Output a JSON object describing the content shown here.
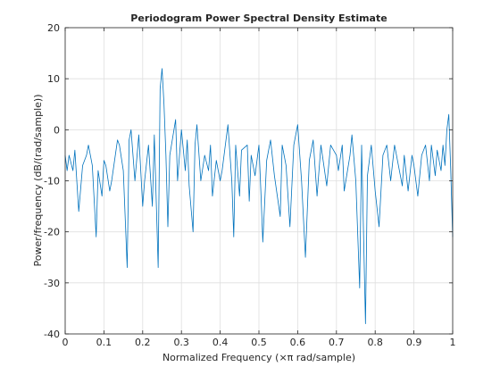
{
  "chart_data": {
    "type": "line",
    "title": "Periodogram Power Spectral Density Estimate",
    "xlabel": "Normalized Frequency  (×π rad/sample)",
    "ylabel": "Power/frequency (dB/(rad/sample))",
    "color": "#0072bd",
    "grid": true,
    "xlim": [
      0,
      1
    ],
    "xticks": [
      0,
      0.1,
      0.2,
      0.3,
      0.4,
      0.5,
      0.6,
      0.7,
      0.8,
      0.9,
      1
    ],
    "ylim": [
      -40,
      20
    ],
    "yticks": [
      -40,
      -30,
      -20,
      -10,
      0,
      10,
      20
    ],
    "x": [
      0,
      0.005,
      0.01,
      0.02,
      0.025,
      0.035,
      0.045,
      0.055,
      0.06,
      0.07,
      0.08,
      0.085,
      0.095,
      0.1,
      0.105,
      0.115,
      0.12,
      0.135,
      0.14,
      0.15,
      0.16,
      0.165,
      0.17,
      0.18,
      0.19,
      0.2,
      0.205,
      0.215,
      0.225,
      0.23,
      0.24,
      0.245,
      0.25,
      0.255,
      0.26,
      0.265,
      0.27,
      0.285,
      0.29,
      0.3,
      0.31,
      0.315,
      0.32,
      0.33,
      0.335,
      0.34,
      0.35,
      0.36,
      0.37,
      0.375,
      0.38,
      0.39,
      0.4,
      0.405,
      0.42,
      0.43,
      0.435,
      0.44,
      0.45,
      0.455,
      0.47,
      0.475,
      0.48,
      0.49,
      0.5,
      0.505,
      0.51,
      0.52,
      0.53,
      0.54,
      0.555,
      0.56,
      0.57,
      0.58,
      0.59,
      0.6,
      0.61,
      0.62,
      0.63,
      0.64,
      0.65,
      0.66,
      0.675,
      0.685,
      0.7,
      0.705,
      0.715,
      0.72,
      0.735,
      0.74,
      0.75,
      0.76,
      0.765,
      0.775,
      0.78,
      0.79,
      0.8,
      0.81,
      0.82,
      0.83,
      0.84,
      0.85,
      0.86,
      0.87,
      0.875,
      0.885,
      0.895,
      0.9,
      0.91,
      0.92,
      0.93,
      0.94,
      0.945,
      0.955,
      0.96,
      0.97,
      0.975,
      0.98,
      0.985,
      0.99,
      0.995,
      1
    ],
    "values": [
      -5,
      -8,
      -5,
      -8,
      -4,
      -16,
      -7,
      -5,
      -3,
      -7,
      -21,
      -8,
      -13,
      -6,
      -7,
      -12,
      -10,
      -2,
      -3,
      -8,
      -27,
      -2,
      0,
      -10,
      -1,
      -15,
      -10,
      -3,
      -15,
      -1,
      -27,
      8,
      12,
      5,
      -5,
      -19,
      -5,
      2,
      -10,
      0,
      -8,
      -2,
      -11,
      -20,
      -3,
      1,
      -10,
      -5,
      -8,
      -3,
      -13,
      -6,
      -10,
      -8,
      1,
      -10,
      -21,
      -3,
      -13,
      -4,
      -3,
      -14,
      -5,
      -9,
      -3,
      -12,
      -22,
      -6,
      -2,
      -9,
      -17,
      -3,
      -7,
      -19,
      -3,
      1,
      -10,
      -25,
      -6,
      -2,
      -13,
      -3,
      -11,
      -3,
      -5,
      -8,
      -3,
      -12,
      -5,
      -1,
      -10,
      -31,
      -3,
      -38,
      -9,
      -3,
      -12,
      -19,
      -5,
      -3,
      -10,
      -3,
      -7,
      -11,
      -5,
      -12,
      -5,
      -7,
      -13,
      -5,
      -3,
      -10,
      -3,
      -9,
      -4,
      -8,
      -3,
      -7,
      0,
      3,
      -8,
      -21
    ]
  }
}
